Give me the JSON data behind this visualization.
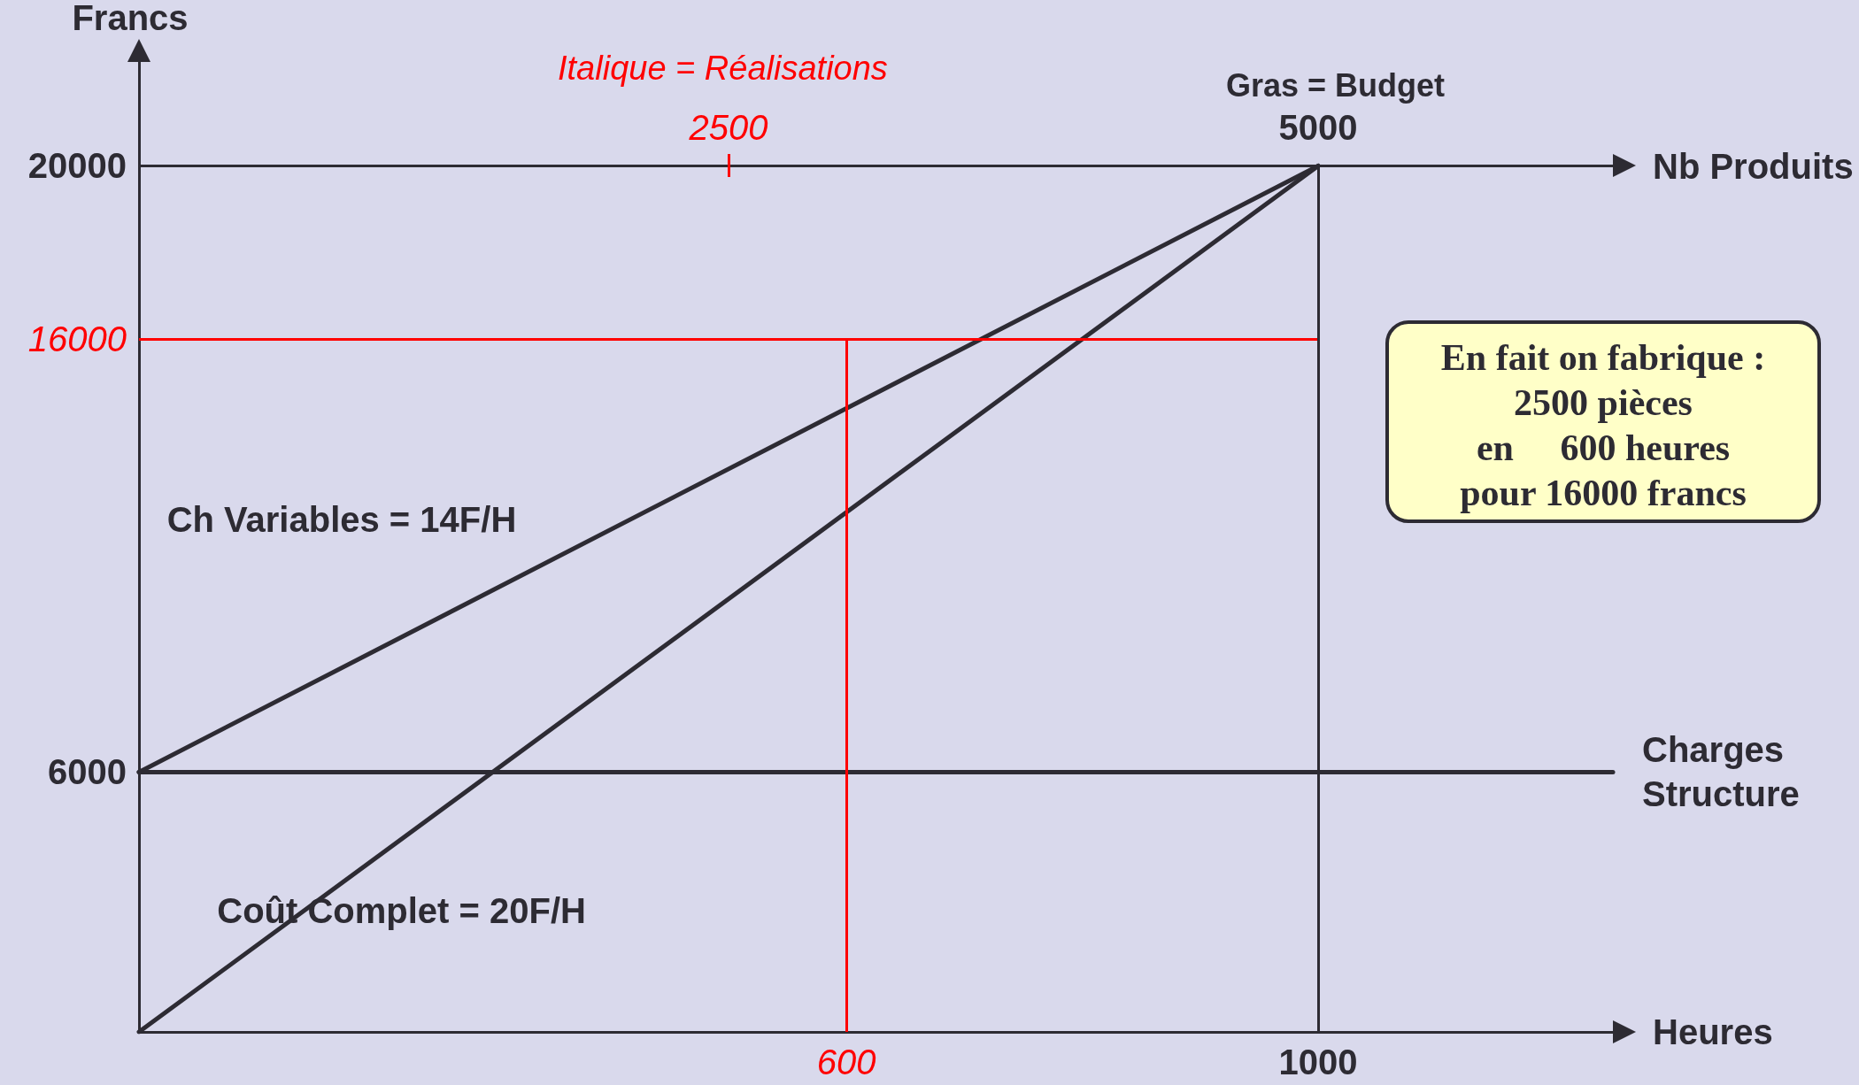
{
  "chart_data": {
    "type": "line",
    "xlabel": "Heures",
    "ylabel": "Francs",
    "x2label": "Nb Produits",
    "xlim": [
      0,
      1250
    ],
    "xticks": [
      600,
      1000
    ],
    "x2lim": [
      0,
      6250
    ],
    "x2ticks": [
      2500,
      5000
    ],
    "ylim": [
      0,
      22400
    ],
    "yticks": [
      6000,
      16000,
      20000
    ],
    "series": [
      {
        "name": "Ch Variables = 14F/H",
        "color": "#2d2b33",
        "x": [
          0,
          1000
        ],
        "values": [
          6000,
          20000
        ]
      },
      {
        "name": "Coût Complet = 20F/H",
        "color": "#2d2b33",
        "x": [
          0,
          1000
        ],
        "values": [
          0,
          20000
        ]
      },
      {
        "name": "Charges Structure",
        "color": "#2d2b33",
        "x": [
          0,
          1250
        ],
        "values": [
          6000,
          6000
        ]
      }
    ],
    "ref_lines": [
      {
        "axis": "y",
        "value": 16000,
        "color": "#ff0000"
      },
      {
        "axis": "x",
        "value": 600,
        "color": "#ff0000"
      },
      {
        "axis": "x",
        "value": 1000,
        "color": "#2d2b33"
      },
      {
        "axis": "y",
        "value": 20000,
        "color": "#2d2b33"
      }
    ],
    "annotations": [
      "Italique = Réalisations",
      "Gras = Budget",
      "En fait on fabrique :\n2500 pièces\nen     600 heures\npour 16000 francs"
    ],
    "legend": false,
    "marker": "none",
    "line_style": "solid"
  }
}
